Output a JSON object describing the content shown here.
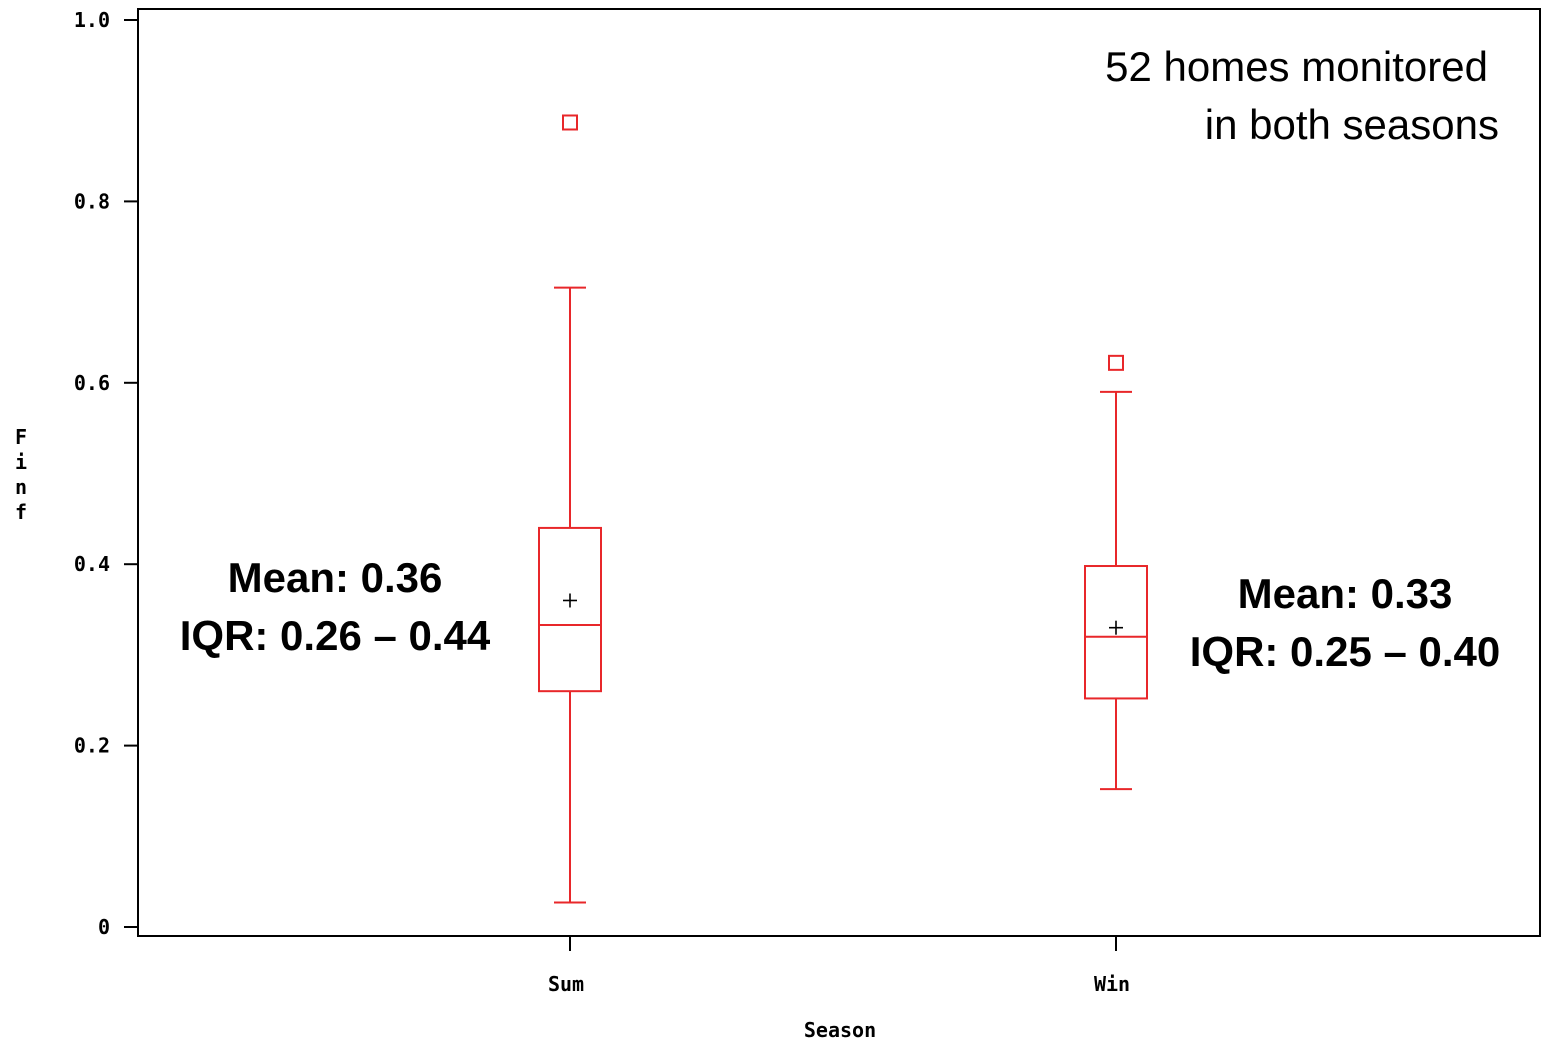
{
  "chart_data": {
    "type": "box",
    "xlabel": "Season",
    "ylabel": "Finf",
    "ylim": [
      0,
      1.0
    ],
    "yticks": [
      "0",
      "0.2",
      "0.4",
      "0.6",
      "0.8",
      "1.0"
    ],
    "ytick_values": [
      0,
      0.2,
      0.4,
      0.6,
      0.8,
      1.0
    ],
    "grid": false,
    "box_color": "#e8272a",
    "categories": [
      "Sum",
      "Win"
    ],
    "boxes": [
      {
        "category": "Sum",
        "whisker_low": 0.027,
        "q1": 0.26,
        "median": 0.333,
        "q3": 0.44,
        "whisker_high": 0.705,
        "mean": 0.36,
        "outliers": [
          0.887
        ]
      },
      {
        "category": "Win",
        "whisker_low": 0.152,
        "q1": 0.252,
        "median": 0.32,
        "q3": 0.398,
        "whisker_high": 0.59,
        "mean": 0.33,
        "outliers": [
          0.622
        ]
      }
    ],
    "annotations": {
      "note_line1": "52 homes monitored",
      "note_line2": "in both seasons",
      "sum_mean": "Mean: 0.36",
      "sum_iqr": "IQR: 0.26 – 0.44",
      "win_mean": "Mean: 0.33",
      "win_iqr": "IQR: 0.25 – 0.40"
    }
  }
}
